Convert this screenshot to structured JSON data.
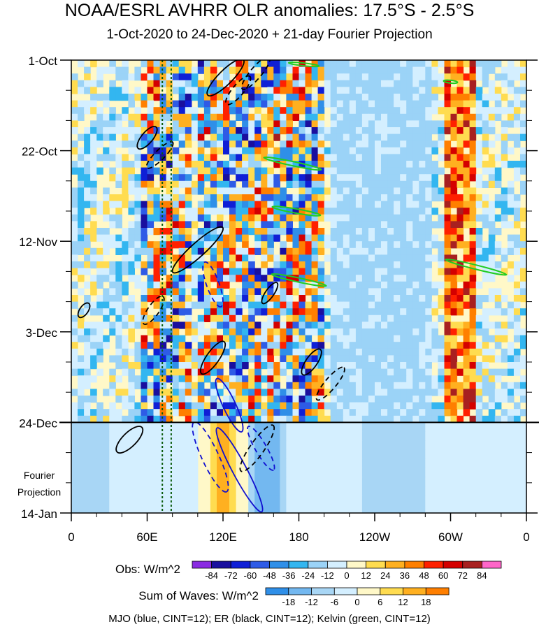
{
  "chart_data": {
    "type": "heatmap",
    "title": "NOAA/ESRL AVHRR OLR anomalies: 17.5°S - 2.5°S",
    "subtitle": "1-Oct-2020 to 24-Dec-2020 + 21-day Fourier Projection",
    "x_ticks": [
      "0",
      "60E",
      "120E",
      "180",
      "120W",
      "60W",
      "0"
    ],
    "x_tick_values": [
      0,
      60,
      120,
      180,
      240,
      300,
      360
    ],
    "xlim": [
      0,
      360
    ],
    "y_ticks": [
      "1-Oct",
      "22-Oct",
      "12-Nov",
      "3-Dec",
      "24-Dec",
      "14-Jan"
    ],
    "y_tick_days": [
      0,
      21,
      42,
      63,
      84,
      105
    ],
    "ylim_days": [
      0,
      105
    ],
    "observed_end_day": 84,
    "projection_label": [
      "Fourier",
      "Projection"
    ],
    "reference_longitudes": [
      72,
      79
    ],
    "obs_colorbar": {
      "label": "Obs: W/m^2",
      "levels": [
        "-84",
        "-72",
        "-60",
        "-48",
        "-36",
        "-24",
        "-12",
        "0",
        "12",
        "24",
        "36",
        "48",
        "60",
        "72",
        "84"
      ],
      "colors": [
        "#8a2be2",
        "#1a0f9e",
        "#0f1fd6",
        "#2e5be6",
        "#2f8fe8",
        "#33b6f0",
        "#9bd3f7",
        "#d4efff",
        "#fff8c8",
        "#ffdc50",
        "#ffb020",
        "#ff7f00",
        "#ff2000",
        "#d40000",
        "#a82020",
        "#ff66c8"
      ]
    },
    "waves_colorbar": {
      "label": "Sum of Waves: W/m^2",
      "levels": [
        "-18",
        "-12",
        "-6",
        "0",
        "6",
        "12",
        "18"
      ],
      "colors": [
        "#2f8fe8",
        "#73b8f0",
        "#a8d6f5",
        "#d4efff",
        "#fff8c8",
        "#ffdc50",
        "#ffb020",
        "#ff7f00"
      ]
    },
    "anomaly_bands": [
      {
        "lon_min": 55,
        "lon_max": 95,
        "sign": "mixed"
      },
      {
        "lon_min": 100,
        "lon_max": 165,
        "sign": "mixed"
      },
      {
        "lon_min": 165,
        "lon_max": 200,
        "sign": "mixed"
      },
      {
        "lon_min": 295,
        "lon_max": 320,
        "sign": "positive"
      }
    ],
    "wave_contours": [
      {
        "wave": "MJO",
        "color": "#1010d0",
        "sign": "negative",
        "lon": 133,
        "day": 95,
        "rx": 68,
        "ry": 10,
        "tilt_deg": 62
      },
      {
        "wave": "MJO",
        "color": "#1010d0",
        "sign": "negative",
        "lon": 125,
        "day": 80,
        "rx": 42,
        "ry": 9,
        "tilt_deg": 65
      },
      {
        "wave": "MJO",
        "color": "#1010d0",
        "sign": "positive",
        "lon": 110,
        "day": 92,
        "rx": 55,
        "ry": 12,
        "tilt_deg": 65
      },
      {
        "wave": "MJO",
        "color": "#1010d0",
        "sign": "positive",
        "lon": 150,
        "day": 90,
        "rx": 36,
        "ry": 8,
        "tilt_deg": 60
      },
      {
        "wave": "MJO",
        "color": "#1010d0",
        "sign": "positive",
        "lon": 112,
        "day": 52,
        "rx": 34,
        "ry": 9,
        "tilt_deg": 70
      },
      {
        "wave": "ER",
        "color": "#000000",
        "sign": "negative",
        "lon": 100,
        "day": 44,
        "rx": 48,
        "ry": 10,
        "tilt_deg": -42
      },
      {
        "wave": "ER",
        "color": "#000000",
        "sign": "negative",
        "lon": 122,
        "day": 4,
        "rx": 36,
        "ry": 10,
        "tilt_deg": -45
      },
      {
        "wave": "ER",
        "color": "#000000",
        "sign": "negative",
        "lon": 60,
        "day": 18,
        "rx": 20,
        "ry": 8,
        "tilt_deg": -50
      },
      {
        "wave": "ER",
        "color": "#000000",
        "sign": "negative",
        "lon": 112,
        "day": 69,
        "rx": 28,
        "ry": 9,
        "tilt_deg": -55
      },
      {
        "wave": "ER",
        "color": "#000000",
        "sign": "negative",
        "lon": 190,
        "day": 70,
        "rx": 22,
        "ry": 8,
        "tilt_deg": -55
      },
      {
        "wave": "ER",
        "color": "#000000",
        "sign": "negative",
        "lon": 157,
        "day": 54,
        "rx": 18,
        "ry": 6,
        "tilt_deg": -55
      },
      {
        "wave": "ER",
        "color": "#000000",
        "sign": "negative",
        "lon": 46,
        "day": 88,
        "rx": 25,
        "ry": 10,
        "tilt_deg": -45
      },
      {
        "wave": "ER",
        "color": "#000000",
        "sign": "negative",
        "lon": 10,
        "day": 58,
        "rx": 12,
        "ry": 6,
        "tilt_deg": -55
      },
      {
        "wave": "ER",
        "color": "#000000",
        "sign": "positive",
        "lon": 146,
        "day": 3,
        "rx": 30,
        "ry": 8,
        "tilt_deg": -50
      },
      {
        "wave": "ER",
        "color": "#000000",
        "sign": "positive",
        "lon": 132,
        "day": 7,
        "rx": 26,
        "ry": 8,
        "tilt_deg": -50
      },
      {
        "wave": "ER",
        "color": "#000000",
        "sign": "positive",
        "lon": 70,
        "day": 22,
        "rx": 26,
        "ry": 7,
        "tilt_deg": -45
      },
      {
        "wave": "ER",
        "color": "#000000",
        "sign": "positive",
        "lon": 65,
        "day": 58,
        "rx": 24,
        "ry": 8,
        "tilt_deg": -55
      },
      {
        "wave": "ER",
        "color": "#000000",
        "sign": "positive",
        "lon": 147,
        "day": 90,
        "rx": 40,
        "ry": 10,
        "tilt_deg": -55
      },
      {
        "wave": "ER",
        "color": "#000000",
        "sign": "positive",
        "lon": 205,
        "day": 75,
        "rx": 30,
        "ry": 8,
        "tilt_deg": -50
      },
      {
        "wave": "Kelvin",
        "color": "#22cc22",
        "sign": "negative",
        "lon": 175,
        "day": 24,
        "rx": 42,
        "ry": 3,
        "tilt_deg": 12
      },
      {
        "wave": "Kelvin",
        "color": "#22cc22",
        "sign": "negative",
        "lon": 178,
        "day": 35,
        "rx": 35,
        "ry": 3,
        "tilt_deg": 10
      },
      {
        "wave": "Kelvin",
        "color": "#22cc22",
        "sign": "negative",
        "lon": 180,
        "day": 51,
        "rx": 40,
        "ry": 3,
        "tilt_deg": 12
      },
      {
        "wave": "Kelvin",
        "color": "#22cc22",
        "sign": "negative",
        "lon": 320,
        "day": 48,
        "rx": 45,
        "ry": 3,
        "tilt_deg": 14
      },
      {
        "wave": "Kelvin",
        "color": "#22cc22",
        "sign": "negative",
        "lon": 184,
        "day": 1,
        "rx": 22,
        "ry": 2,
        "tilt_deg": 6
      },
      {
        "wave": "Kelvin",
        "color": "#22cc22",
        "sign": "negative",
        "lon": 300,
        "day": 5,
        "rx": 10,
        "ry": 2,
        "tilt_deg": 6
      }
    ],
    "legend_note": "MJO (blue, CINT=12); ER (black, CINT=12); Kelvin (green, CINT=12)"
  }
}
